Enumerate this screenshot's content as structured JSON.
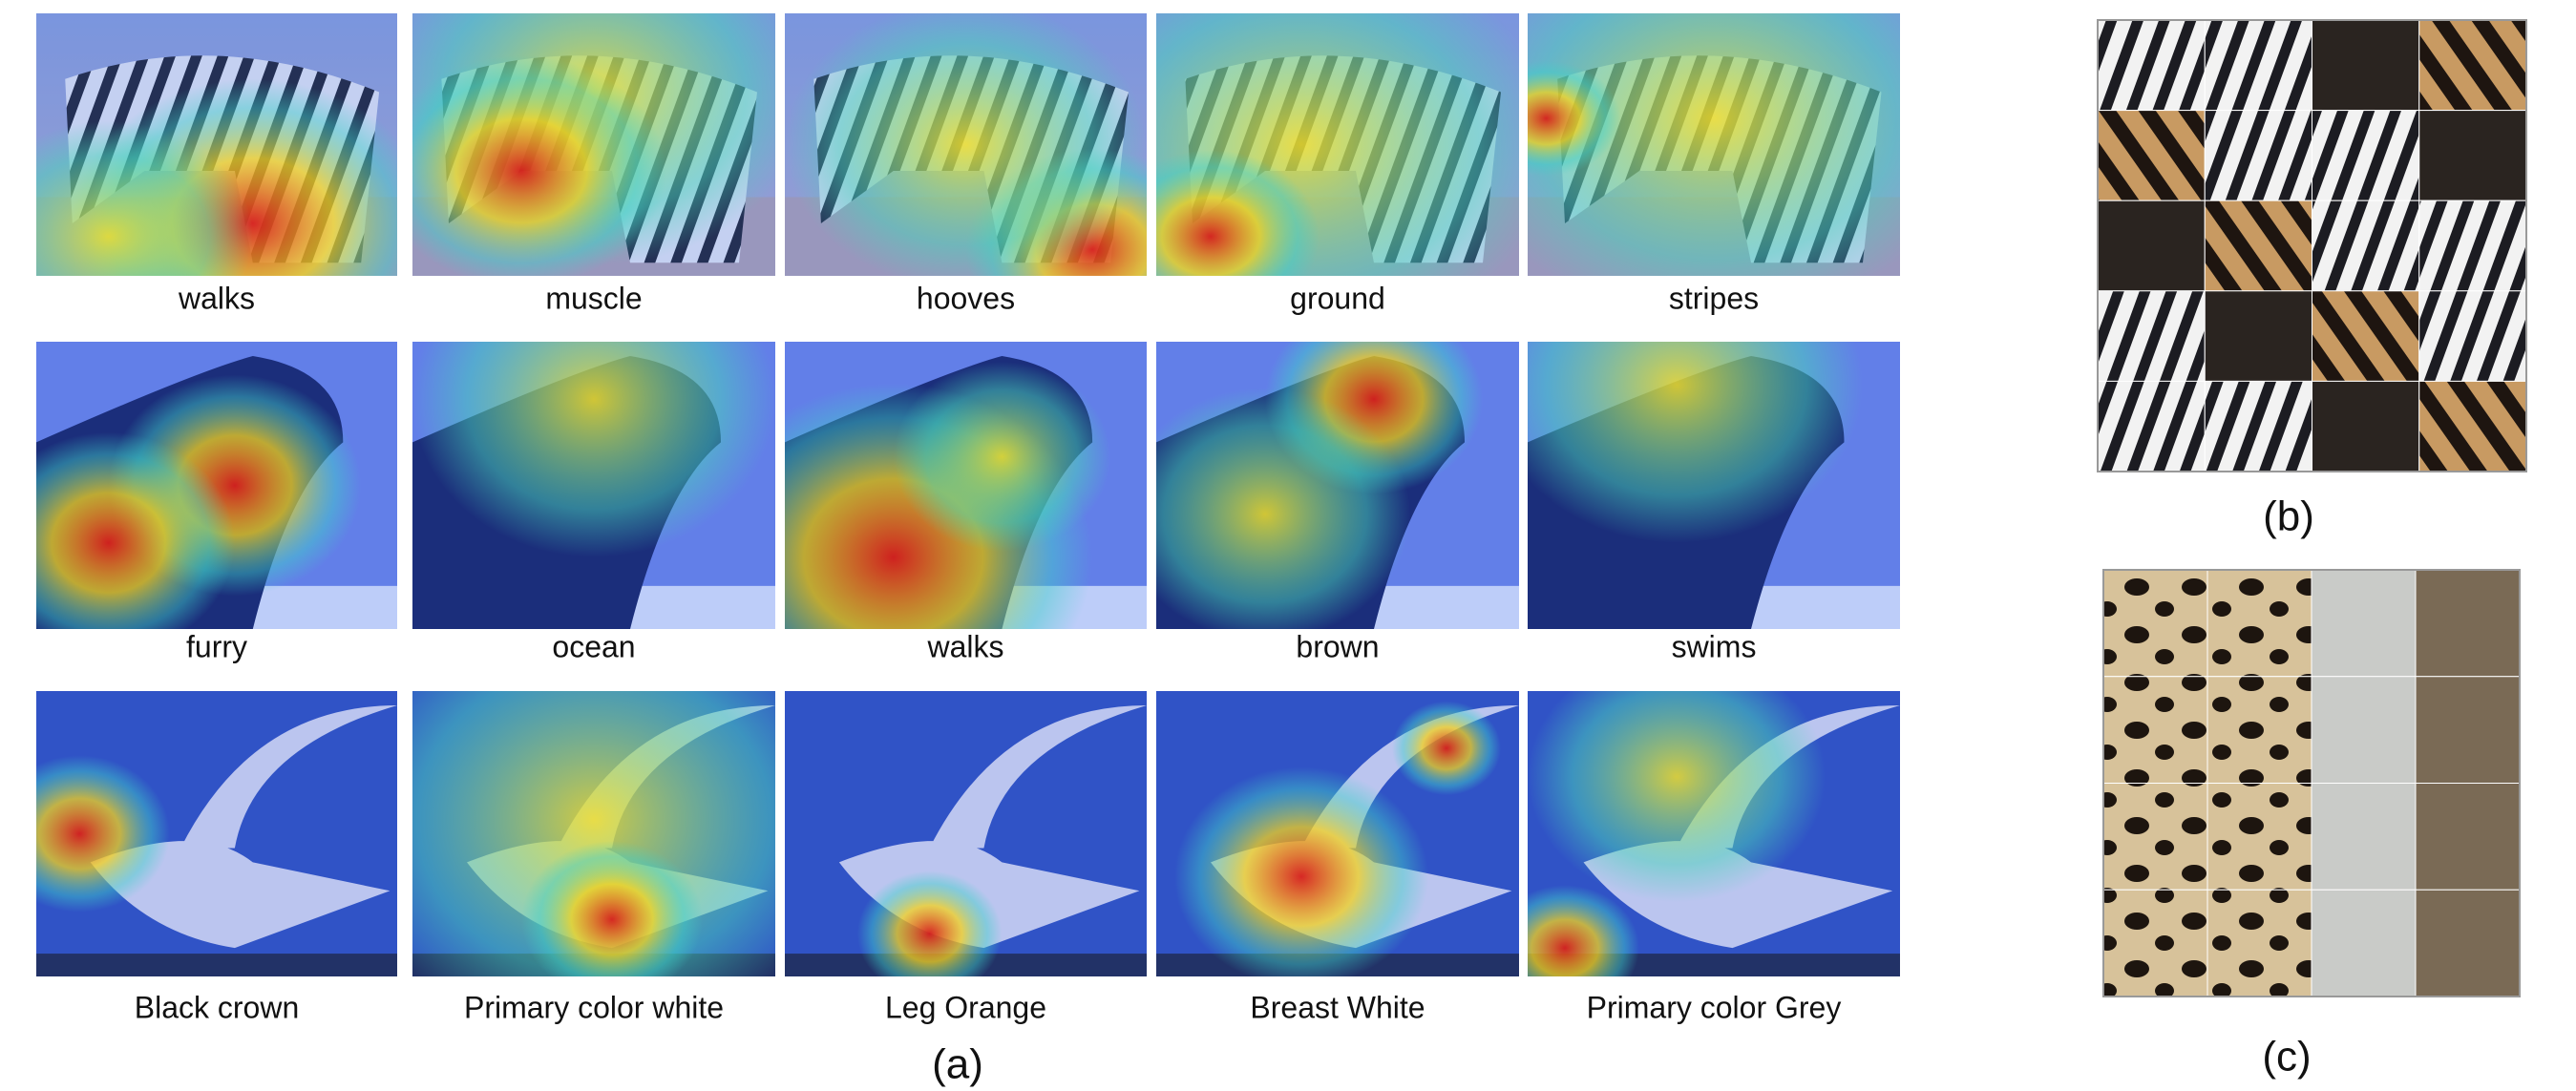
{
  "panel_a": {
    "rows": [
      {
        "labels": [
          "walks",
          "muscle",
          "hooves",
          "ground",
          "stripes"
        ]
      },
      {
        "labels": [
          "furry",
          "ocean",
          "walks",
          "brown",
          "swims"
        ]
      },
      {
        "labels": [
          "Black crown",
          "Primary color white",
          "Leg Orange",
          "Breast White",
          "Primary color Grey"
        ]
      }
    ],
    "caption": "(a)"
  },
  "panel_b": {
    "caption": "(b)"
  },
  "panel_c": {
    "caption": "(c)"
  }
}
